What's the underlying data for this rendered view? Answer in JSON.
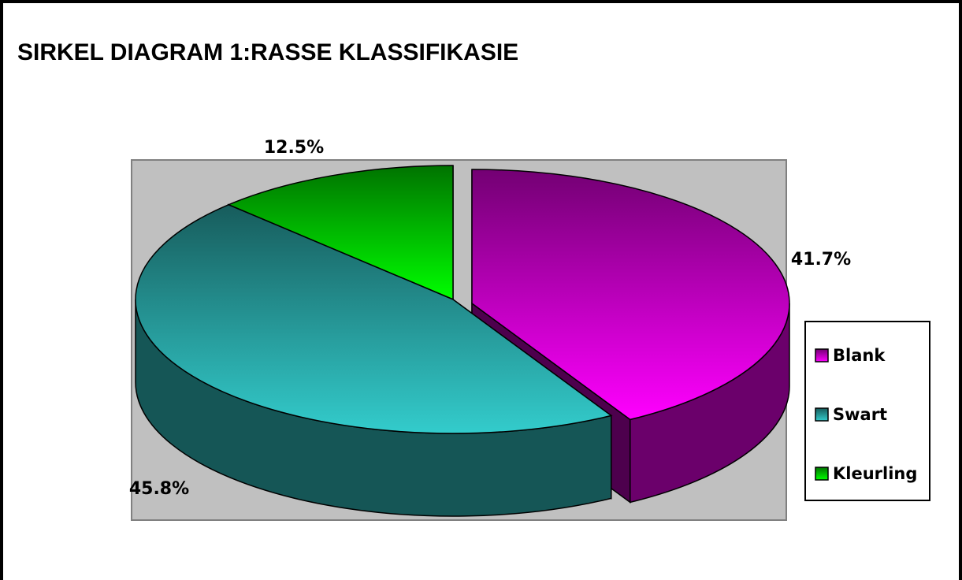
{
  "chart_data": {
    "type": "pie",
    "title": "SIRKEL DIAGRAM 1:RASSE KLASSIFIKASIE",
    "categories": [
      "Blank",
      "Swart",
      "Kleurling"
    ],
    "values": [
      41.7,
      45.8,
      12.5
    ],
    "value_labels": [
      "41.7%",
      "45.8%",
      "12.5%"
    ],
    "colors": [
      "#ff00ff",
      "#33cccc",
      "#00ff00"
    ],
    "legend": "right"
  }
}
